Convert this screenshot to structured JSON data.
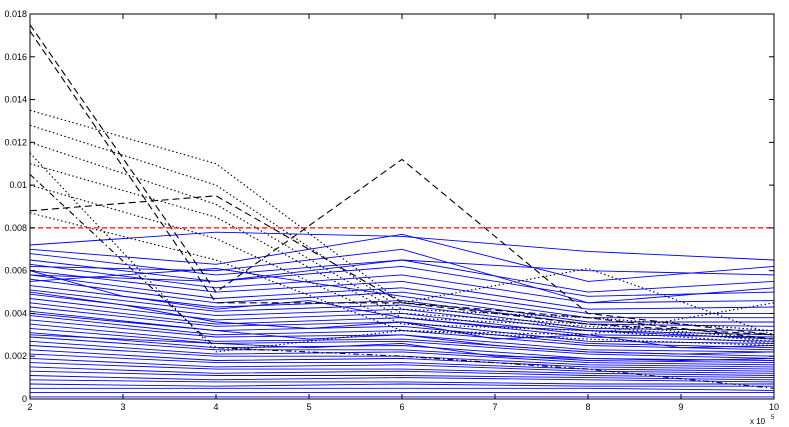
{
  "chart_data": {
    "type": "line",
    "title": "",
    "xlabel": "",
    "ylabel": "",
    "x": [
      2,
      3,
      4,
      5,
      6,
      7,
      8,
      9,
      10
    ],
    "x_multiplier_label": "x 10",
    "x_multiplier_exponent": "5",
    "xlim": [
      2,
      10
    ],
    "ylim": [
      0,
      0.018
    ],
    "x_ticks": [
      "2",
      "3",
      "4",
      "5",
      "6",
      "7",
      "8",
      "9",
      "10"
    ],
    "y_ticks": [
      "0",
      "0.002",
      "0.004",
      "0.006",
      "0.008",
      "0.01",
      "0.012",
      "0.014",
      "0.016",
      "0.018"
    ],
    "y_tick_values": [
      0,
      0.002,
      0.004,
      0.006,
      0.008,
      0.01,
      0.012,
      0.014,
      0.016,
      0.018
    ],
    "grid": false,
    "threshold": {
      "value": 0.008,
      "color": "#ff0000",
      "style": "dashed"
    },
    "colors": {
      "blue": "#0000ff",
      "black": "#000000",
      "axis": "#000000"
    },
    "series": [
      {
        "color": "#0000ff",
        "style": "solid",
        "x": [
          2,
          4,
          6,
          8,
          10
        ],
        "y": [
          0.0072,
          0.0078,
          0.0076,
          0.0069,
          0.0065
        ]
      },
      {
        "color": "#0000ff",
        "style": "solid",
        "x": [
          2,
          4,
          6,
          8,
          10
        ],
        "y": [
          0.007,
          0.0063,
          0.0077,
          0.0055,
          0.0062
        ]
      },
      {
        "color": "#0000ff",
        "style": "solid",
        "x": [
          2,
          4,
          6,
          8,
          10
        ],
        "y": [
          0.0068,
          0.0058,
          0.0065,
          0.005,
          0.0055
        ]
      },
      {
        "color": "#0000ff",
        "style": "solid",
        "x": [
          2,
          4,
          6,
          8,
          10
        ],
        "y": [
          0.0065,
          0.0055,
          0.0062,
          0.0048,
          0.005
        ]
      },
      {
        "color": "#0000ff",
        "style": "solid",
        "x": [
          2,
          4,
          6,
          8,
          10
        ],
        "y": [
          0.0063,
          0.0052,
          0.0058,
          0.0045,
          0.0046
        ]
      },
      {
        "color": "#0000ff",
        "style": "solid",
        "x": [
          2,
          4,
          6,
          8,
          10
        ],
        "y": [
          0.006,
          0.005,
          0.0055,
          0.0042,
          0.0043
        ]
      },
      {
        "color": "#0000ff",
        "style": "solid",
        "x": [
          2,
          4,
          6,
          8,
          10
        ],
        "y": [
          0.0058,
          0.0047,
          0.0052,
          0.004,
          0.004
        ]
      },
      {
        "color": "#0000ff",
        "style": "solid",
        "x": [
          2,
          4,
          6,
          8,
          10
        ],
        "y": [
          0.0056,
          0.0045,
          0.005,
          0.0038,
          0.0038
        ]
      },
      {
        "color": "#0000ff",
        "style": "solid",
        "x": [
          2,
          4,
          6,
          8,
          10
        ],
        "y": [
          0.0055,
          0.0061,
          0.0048,
          0.0036,
          0.0036
        ]
      },
      {
        "color": "#0000ff",
        "style": "solid",
        "x": [
          2,
          4,
          6,
          8,
          10
        ],
        "y": [
          0.0053,
          0.0043,
          0.0046,
          0.0035,
          0.0034
        ]
      },
      {
        "color": "#0000ff",
        "style": "solid",
        "x": [
          2,
          4,
          6,
          8,
          10
        ],
        "y": [
          0.0051,
          0.0041,
          0.0044,
          0.0033,
          0.0032
        ]
      },
      {
        "color": "#0000ff",
        "style": "solid",
        "x": [
          2,
          4,
          6,
          8,
          10
        ],
        "y": [
          0.0049,
          0.0039,
          0.0042,
          0.0032,
          0.003
        ]
      },
      {
        "color": "#0000ff",
        "style": "solid",
        "x": [
          2,
          4,
          6,
          8,
          10
        ],
        "y": [
          0.0047,
          0.0037,
          0.004,
          0.003,
          0.0029
        ]
      },
      {
        "color": "#0000ff",
        "style": "solid",
        "x": [
          2,
          4,
          6,
          8,
          10
        ],
        "y": [
          0.0045,
          0.0035,
          0.0038,
          0.0029,
          0.0027
        ]
      },
      {
        "color": "#0000ff",
        "style": "solid",
        "x": [
          2,
          4,
          6,
          8,
          10
        ],
        "y": [
          0.0043,
          0.0034,
          0.0036,
          0.0027,
          0.0026
        ]
      },
      {
        "color": "#0000ff",
        "style": "solid",
        "x": [
          2,
          4,
          6,
          8,
          10
        ],
        "y": [
          0.0041,
          0.0032,
          0.0034,
          0.0026,
          0.0024
        ]
      },
      {
        "color": "#0000ff",
        "style": "solid",
        "x": [
          2,
          4,
          6,
          8,
          10
        ],
        "y": [
          0.0039,
          0.003,
          0.0032,
          0.0025,
          0.0023
        ]
      },
      {
        "color": "#0000ff",
        "style": "solid",
        "x": [
          2,
          4,
          6,
          8,
          10
        ],
        "y": [
          0.0037,
          0.0029,
          0.003,
          0.0023,
          0.0022
        ]
      },
      {
        "color": "#0000ff",
        "style": "solid",
        "x": [
          2,
          4,
          6,
          8,
          10
        ],
        "y": [
          0.0035,
          0.0027,
          0.0028,
          0.0022,
          0.002
        ]
      },
      {
        "color": "#0000ff",
        "style": "solid",
        "x": [
          2,
          4,
          6,
          8,
          10
        ],
        "y": [
          0.0033,
          0.0026,
          0.0027,
          0.0021,
          0.0019
        ]
      },
      {
        "color": "#0000ff",
        "style": "solid",
        "x": [
          2,
          4,
          6,
          8,
          10
        ],
        "y": [
          0.0031,
          0.0024,
          0.0025,
          0.0019,
          0.0018
        ]
      },
      {
        "color": "#0000ff",
        "style": "solid",
        "x": [
          2,
          4,
          6,
          8,
          10
        ],
        "y": [
          0.0029,
          0.0023,
          0.0023,
          0.0018,
          0.0017
        ]
      },
      {
        "color": "#0000ff",
        "style": "solid",
        "x": [
          2,
          4,
          6,
          8,
          10
        ],
        "y": [
          0.0027,
          0.0021,
          0.0022,
          0.0017,
          0.0016
        ]
      },
      {
        "color": "#0000ff",
        "style": "solid",
        "x": [
          2,
          4,
          6,
          8,
          10
        ],
        "y": [
          0.0025,
          0.002,
          0.002,
          0.0016,
          0.0015
        ]
      },
      {
        "color": "#0000ff",
        "style": "solid",
        "x": [
          2,
          4,
          6,
          8,
          10
        ],
        "y": [
          0.0023,
          0.0018,
          0.0019,
          0.0015,
          0.0014
        ]
      },
      {
        "color": "#0000ff",
        "style": "solid",
        "x": [
          2,
          4,
          6,
          8,
          10
        ],
        "y": [
          0.0021,
          0.0017,
          0.0017,
          0.0014,
          0.0013
        ]
      },
      {
        "color": "#0000ff",
        "style": "solid",
        "x": [
          2,
          4,
          6,
          8,
          10
        ],
        "y": [
          0.0019,
          0.0015,
          0.0016,
          0.0013,
          0.0012
        ]
      },
      {
        "color": "#0000ff",
        "style": "solid",
        "x": [
          2,
          4,
          6,
          8,
          10
        ],
        "y": [
          0.0017,
          0.0014,
          0.0014,
          0.0012,
          0.0011
        ]
      },
      {
        "color": "#0000ff",
        "style": "solid",
        "x": [
          2,
          4,
          6,
          8,
          10
        ],
        "y": [
          0.0015,
          0.0012,
          0.0013,
          0.0011,
          0.001
        ]
      },
      {
        "color": "#0000ff",
        "style": "solid",
        "x": [
          2,
          4,
          6,
          8,
          10
        ],
        "y": [
          0.0013,
          0.0011,
          0.0011,
          0.001,
          0.0009
        ]
      },
      {
        "color": "#0000ff",
        "style": "solid",
        "x": [
          2,
          4,
          6,
          8,
          10
        ],
        "y": [
          0.0011,
          0.0009,
          0.001,
          0.0009,
          0.0008
        ]
      },
      {
        "color": "#0000ff",
        "style": "solid",
        "x": [
          2,
          4,
          6,
          8,
          10
        ],
        "y": [
          0.0009,
          0.0008,
          0.0008,
          0.0007,
          0.0007
        ]
      },
      {
        "color": "#0000ff",
        "style": "solid",
        "x": [
          2,
          4,
          6,
          8,
          10
        ],
        "y": [
          0.0007,
          0.0006,
          0.0007,
          0.0006,
          0.0006
        ]
      },
      {
        "color": "#0000ff",
        "style": "solid",
        "x": [
          2,
          4,
          6,
          8,
          10
        ],
        "y": [
          0.0005,
          0.0005,
          0.0005,
          0.0005,
          0.0004
        ]
      },
      {
        "color": "#0000ff",
        "style": "solid",
        "x": [
          2,
          4,
          6,
          8,
          10
        ],
        "y": [
          0.0003,
          0.0003,
          0.0003,
          0.0003,
          0.0003
        ]
      },
      {
        "color": "#0000ff",
        "style": "solid",
        "x": [
          2,
          4,
          6,
          8,
          10
        ],
        "y": [
          0.0001,
          0.0001,
          0.0001,
          0.0001,
          0.0001
        ]
      },
      {
        "color": "#0000ff",
        "style": "solid",
        "x": [
          2,
          3,
          4,
          5,
          6,
          7,
          8,
          9,
          10
        ],
        "y": [
          0.006,
          0.0048,
          0.0042,
          0.0046,
          0.0038,
          0.0034,
          0.0032,
          0.003,
          0.0028
        ]
      },
      {
        "color": "#0000ff",
        "style": "solid",
        "x": [
          2,
          3,
          4,
          5,
          6,
          7,
          8,
          9,
          10
        ],
        "y": [
          0.005,
          0.0044,
          0.0036,
          0.0033,
          0.0036,
          0.0028,
          0.003,
          0.0024,
          0.0025
        ]
      },
      {
        "color": "#0000ff",
        "style": "solid",
        "x": [
          2,
          3,
          4,
          5,
          6,
          7,
          8,
          9,
          10
        ],
        "y": [
          0.004,
          0.0036,
          0.0032,
          0.0028,
          0.003,
          0.0025,
          0.0022,
          0.0021,
          0.0022
        ]
      },
      {
        "color": "#0000ff",
        "style": "solid",
        "x": [
          2,
          3,
          4,
          5,
          6,
          7,
          8,
          9,
          10
        ],
        "y": [
          0.003,
          0.0028,
          0.0026,
          0.0024,
          0.0026,
          0.002,
          0.0019,
          0.0018,
          0.0019
        ]
      },
      {
        "color": "#0000ff",
        "style": "solid",
        "x": [
          2,
          4,
          6,
          8,
          10
        ],
        "y": [
          0.0058,
          0.0055,
          0.0065,
          0.006,
          0.0058
        ]
      },
      {
        "color": "#0000ff",
        "style": "solid",
        "x": [
          2,
          4,
          6,
          8,
          10
        ],
        "y": [
          0.0062,
          0.006,
          0.007,
          0.0045,
          0.0052
        ]
      },
      {
        "color": "#000000",
        "style": "dashed",
        "x": [
          2,
          4,
          6,
          8,
          10
        ],
        "y": [
          0.0175,
          0.005,
          0.0112,
          0.004,
          0.003
        ]
      },
      {
        "color": "#000000",
        "style": "dashed",
        "x": [
          2,
          4,
          6,
          8,
          10
        ],
        "y": [
          0.0172,
          0.0045,
          0.0045,
          0.0035,
          0.003
        ]
      },
      {
        "color": "#000000",
        "style": "dashed",
        "x": [
          2,
          4,
          6,
          8,
          10
        ],
        "y": [
          0.0088,
          0.0095,
          0.0045,
          0.0038,
          0.0028
        ]
      },
      {
        "color": "#000000",
        "style": "dotted",
        "x": [
          2,
          4,
          6,
          8,
          10
        ],
        "y": [
          0.0135,
          0.011,
          0.0045,
          0.0061,
          0.003
        ]
      },
      {
        "color": "#000000",
        "style": "dotted",
        "x": [
          2,
          4,
          6,
          8,
          10
        ],
        "y": [
          0.0128,
          0.01,
          0.0042,
          0.0038,
          0.0032
        ]
      },
      {
        "color": "#000000",
        "style": "dotted",
        "x": [
          2,
          4,
          6,
          8,
          10
        ],
        "y": [
          0.012,
          0.0091,
          0.004,
          0.0035,
          0.0028
        ]
      },
      {
        "color": "#000000",
        "style": "dotted",
        "x": [
          2,
          4,
          6,
          8,
          10
        ],
        "y": [
          0.011,
          0.0085,
          0.0038,
          0.0034,
          0.0027
        ]
      },
      {
        "color": "#000000",
        "style": "dotted",
        "x": [
          2,
          4,
          6,
          8,
          10
        ],
        "y": [
          0.01,
          0.0075,
          0.0035,
          0.0032,
          0.0026
        ]
      },
      {
        "color": "#000000",
        "style": "dotted",
        "x": [
          2,
          4,
          6,
          8,
          10
        ],
        "y": [
          0.0087,
          0.0065,
          0.0032,
          0.003,
          0.0045
        ]
      },
      {
        "color": "#000000",
        "style": "dotted",
        "x": [
          2,
          4,
          6,
          8,
          10
        ],
        "y": [
          0.0115,
          0.0022,
          0.0032,
          0.0028,
          0.0025
        ]
      },
      {
        "color": "#000000",
        "style": "dashdot",
        "x": [
          2,
          4,
          6,
          8,
          10
        ],
        "y": [
          0.0105,
          0.0024,
          0.002,
          0.0014,
          0.0005
        ]
      }
    ]
  }
}
